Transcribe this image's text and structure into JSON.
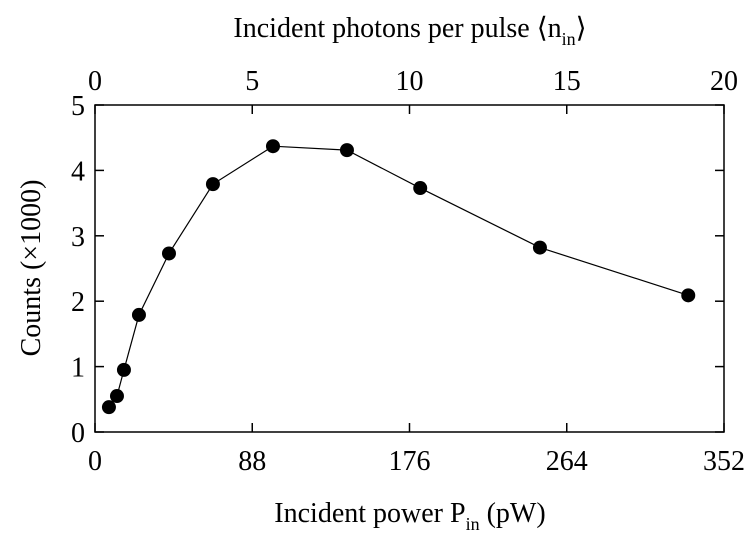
{
  "chart_data": {
    "type": "line",
    "x_label": {
      "main": "Incident power P",
      "sub": "in",
      "end": " (pW)"
    },
    "x2_label": {
      "main": "Incident photons per pulse ⟨n",
      "sub": "in",
      "end": "⟩"
    },
    "y_label": "Counts (×1000)",
    "x": [
      7.8,
      12.3,
      16.2,
      24.6,
      41.4,
      66,
      99.6,
      141,
      182,
      249,
      332
    ],
    "series": [
      {
        "name": "Counts",
        "color": "#000000",
        "values": [
          0.38,
          0.55,
          0.95,
          1.79,
          2.73,
          3.79,
          4.37,
          4.31,
          3.73,
          2.82,
          2.09
        ]
      }
    ],
    "xlim": [
      0,
      352
    ],
    "xticks": [
      0,
      88,
      176,
      264,
      352
    ],
    "x2lim": [
      0,
      20
    ],
    "x2ticks": [
      0,
      5,
      10,
      15,
      20
    ],
    "ylim": [
      0,
      5
    ],
    "yticks": [
      0,
      1,
      2,
      3,
      4,
      5
    ],
    "grid": false
  }
}
